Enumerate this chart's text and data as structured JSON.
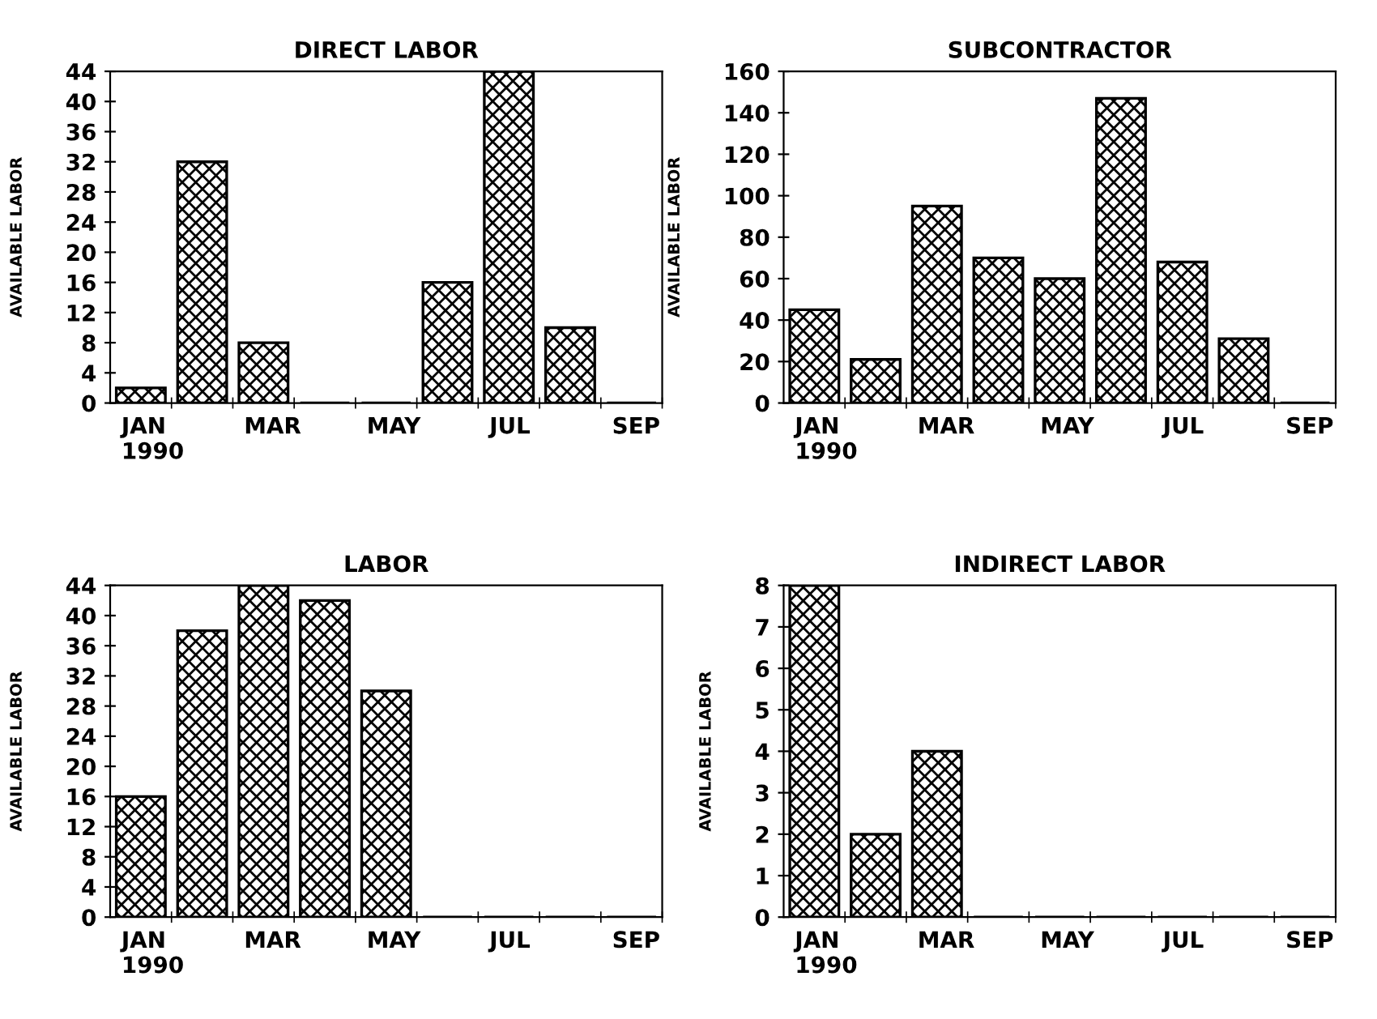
{
  "chart_data": [
    {
      "type": "bar",
      "title": "DIRECT LABOR",
      "ylabel": "AVAILABLE LABOR",
      "categories": [
        "JAN\n1990",
        null,
        "MAR",
        null,
        "MAY",
        null,
        "JUL",
        null,
        "SEP"
      ],
      "values": [
        2,
        32,
        8,
        0,
        0,
        16,
        44,
        10,
        0
      ],
      "color": "#000000",
      "ylim": [
        0,
        44
      ],
      "yticks": [
        0,
        4,
        8,
        12,
        16,
        20,
        24,
        28,
        32,
        36,
        40,
        44
      ],
      "grid": false,
      "legend": false
    },
    {
      "type": "bar",
      "title": "SUBCONTRACTOR",
      "ylabel": "AVAILABLE LABOR",
      "categories": [
        "JAN\n1990",
        null,
        "MAR",
        null,
        "MAY",
        null,
        "JUL",
        null,
        "SEP"
      ],
      "values": [
        45,
        21,
        95,
        70,
        60,
        147,
        68,
        31,
        0
      ],
      "color": "#000000",
      "ylim": [
        0,
        160
      ],
      "yticks": [
        0,
        20,
        40,
        60,
        80,
        100,
        120,
        140,
        160
      ],
      "grid": false,
      "legend": false
    },
    {
      "type": "bar",
      "title": "LABOR",
      "ylabel": "AVAILABLE LABOR",
      "categories": [
        "JAN\n1990",
        null,
        "MAR",
        null,
        "MAY",
        null,
        "JUL",
        null,
        "SEP"
      ],
      "values": [
        16,
        38,
        44,
        42,
        30,
        0,
        0,
        0,
        0
      ],
      "color": "#000000",
      "ylim": [
        0,
        44
      ],
      "yticks": [
        0,
        4,
        8,
        12,
        16,
        20,
        24,
        28,
        32,
        36,
        40,
        44
      ],
      "grid": false,
      "legend": false
    },
    {
      "type": "bar",
      "title": "INDIRECT LABOR",
      "ylabel": "AVAILABLE LABOR",
      "categories": [
        "JAN\n1990",
        null,
        "MAR",
        null,
        "MAY",
        null,
        "JUL",
        null,
        "SEP"
      ],
      "values": [
        8,
        2,
        4,
        0,
        0,
        0,
        0,
        0,
        0
      ],
      "color": "#000000",
      "ylim": [
        0,
        8
      ],
      "yticks": [
        0,
        1,
        2,
        3,
        4,
        5,
        6,
        7,
        8
      ],
      "grid": false,
      "legend": false
    }
  ]
}
